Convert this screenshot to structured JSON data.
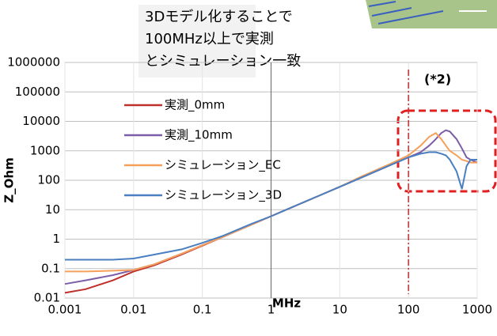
{
  "chart_data": {
    "type": "line",
    "annotation_lines": [
      "3Dモデル化することで",
      "100MHz以上で実測",
      "とシミュレーション一致"
    ],
    "note": "(*2)",
    "marker_x": 100,
    "x_label": "MHz",
    "y_label": "Z_Ohm",
    "log_x": true,
    "log_y": true,
    "grid": true,
    "x": [
      0.001,
      0.002,
      0.005,
      0.01,
      0.02,
      0.05,
      0.1,
      0.2,
      0.5,
      1,
      2,
      5,
      10,
      20,
      50,
      100,
      150,
      200,
      250,
      300,
      350,
      400,
      500,
      600,
      700,
      800,
      1000
    ],
    "xlim": [
      0.001,
      1000
    ],
    "xticks": [
      0.001,
      0.01,
      0.1,
      1,
      10,
      100,
      1000
    ],
    "ylim": [
      0.01,
      1000000
    ],
    "yticks": [
      0.01,
      0.1,
      1,
      10,
      100,
      1000,
      10000,
      100000,
      1000000
    ],
    "series": [
      {
        "name": "実測_0mm",
        "color": "#c0302a",
        "values": [
          0.015,
          0.02,
          0.04,
          0.08,
          0.13,
          0.3,
          0.6,
          1.2,
          3,
          6,
          12,
          30,
          60,
          120,
          300,
          600,
          900,
          null,
          null,
          null,
          null,
          null,
          null,
          null,
          null,
          null,
          null
        ]
      },
      {
        "name": "実測_10mm",
        "color": "#7b5ea7",
        "values": [
          0.03,
          0.04,
          0.06,
          0.09,
          0.14,
          0.32,
          0.62,
          1.2,
          3,
          6,
          12,
          30,
          60,
          120,
          300,
          600,
          900,
          1500,
          2500,
          4000,
          5000,
          4500,
          2500,
          1200,
          600,
          500,
          400
        ]
      },
      {
        "name": "シミュレーション_EC",
        "color": "#f6a05a",
        "values": [
          0.08,
          0.08,
          0.085,
          0.09,
          0.14,
          0.32,
          0.62,
          1.2,
          3,
          6,
          12,
          30,
          60,
          130,
          330,
          700,
          1500,
          3000,
          4000,
          2500,
          1500,
          1000,
          700,
          500,
          450,
          400,
          400
        ]
      },
      {
        "name": "シミュレーション_3D",
        "color": "#4a7fc1",
        "values": [
          0.2,
          0.2,
          0.2,
          0.22,
          0.3,
          0.45,
          0.75,
          1.3,
          3.2,
          6,
          12,
          30,
          60,
          120,
          300,
          600,
          800,
          900,
          900,
          800,
          700,
          500,
          200,
          50,
          300,
          500,
          500
        ]
      }
    ]
  }
}
